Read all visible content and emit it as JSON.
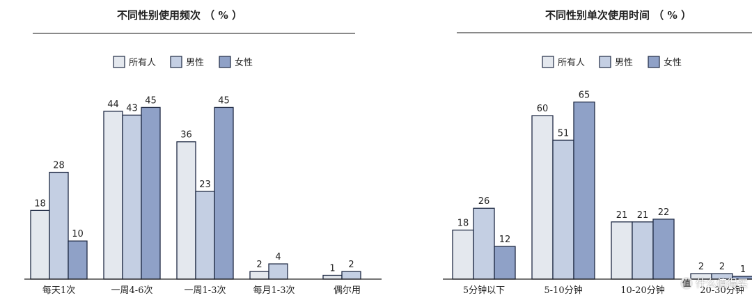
{
  "colors": {
    "series": [
      "#e4e8ee",
      "#c4cfe3",
      "#8fa1c7"
    ],
    "stroke": "#1f2a44",
    "axis": "#222222"
  },
  "chart_data": [
    {
      "type": "bar",
      "title": "不同性别使用频次 （ % ）",
      "categories": [
        "每天1次",
        "一周4-6次",
        "一周1-3次",
        "每月1-3次",
        "偶尔用"
      ],
      "series": [
        {
          "name": "所有人",
          "values": [
            18,
            44,
            36,
            2,
            1
          ]
        },
        {
          "name": "男性",
          "values": [
            28,
            43,
            23,
            4,
            2
          ]
        },
        {
          "name": "女性",
          "values": [
            10,
            45,
            45,
            null,
            null
          ]
        }
      ],
      "ylim": [
        0,
        50
      ],
      "grid": false,
      "legend": "top-center",
      "xlabel": "",
      "ylabel": ""
    },
    {
      "type": "bar",
      "title": "不同性别单次使用时间 （ % ）",
      "categories": [
        "5分钟以下",
        "5-10分钟",
        "10-20分钟",
        "20-30分钟"
      ],
      "series": [
        {
          "name": "所有人",
          "values": [
            18,
            60,
            21,
            2
          ]
        },
        {
          "name": "男性",
          "values": [
            26,
            51,
            21,
            2
          ]
        },
        {
          "name": "女性",
          "values": [
            12,
            65,
            22,
            1
          ]
        }
      ],
      "ylim": [
        0,
        70
      ],
      "grid": false,
      "legend": "top-center",
      "xlabel": "",
      "ylabel": ""
    }
  ],
  "watermark": {
    "icon": "值",
    "text": "什么值得买"
  }
}
